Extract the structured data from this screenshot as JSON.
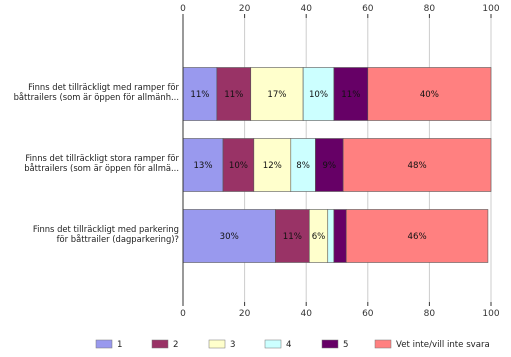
{
  "chart_data": {
    "type": "bar",
    "orientation": "horizontal",
    "stacked": true,
    "xlim": [
      0,
      100
    ],
    "ticks": [
      "0",
      "20",
      "40",
      "60",
      "80",
      "100"
    ],
    "grid": true,
    "legend_position": "bottom",
    "categories": [
      [
        "Finns det tillräckligt med ramper för",
        "båttrailers (som är öppen för allmänh..."
      ],
      [
        "Finns det tillräckligt stora ramper för",
        "båttrailers (som är öppen för allmä..."
      ],
      [
        "Finns det tillräckligt med parkering",
        "för båttrailer (dagparkering)?"
      ]
    ],
    "series": [
      {
        "name": "1",
        "color": "#9999ee",
        "values": [
          11,
          13,
          30
        ],
        "labels": [
          "11%",
          "13%",
          "30%"
        ]
      },
      {
        "name": "2",
        "color": "#993366",
        "values": [
          11,
          10,
          11
        ],
        "labels": [
          "11%",
          "10%",
          "11%"
        ]
      },
      {
        "name": "3",
        "color": "#ffffcc",
        "values": [
          17,
          12,
          6
        ],
        "labels": [
          "17%",
          "12%",
          "6%"
        ]
      },
      {
        "name": "4",
        "color": "#ccffff",
        "values": [
          10,
          8,
          2
        ],
        "labels": [
          "10%",
          "8%",
          ""
        ]
      },
      {
        "name": "5",
        "color": "#660066",
        "values": [
          11,
          9,
          4
        ],
        "labels": [
          "11%",
          "9%",
          ""
        ]
      },
      {
        "name": "Vet inte/vill inte svara",
        "color": "#ff8080",
        "values": [
          40,
          48,
          46
        ],
        "labels": [
          "40%",
          "48%",
          "46%"
        ]
      }
    ]
  }
}
